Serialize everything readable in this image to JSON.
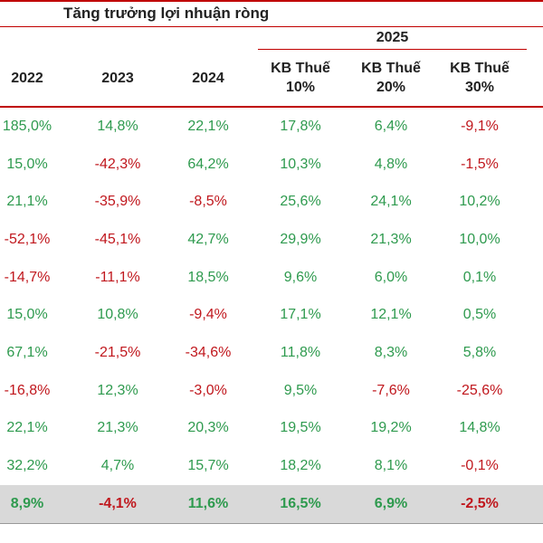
{
  "title": "Tăng trưởng lợi nhuận ròng",
  "group_label": "2025",
  "headers": [
    "2022",
    "2023",
    "2024",
    "KB Thuế\n10%",
    "KB Thuế\n20%",
    "KB Thuế\n30%"
  ],
  "colors": {
    "positive": "#2e9a4e",
    "negative": "#c0171d",
    "rule": "#c00000",
    "total_bg": "#d9d9d9"
  },
  "rows": [
    [
      "185,0%",
      "14,8%",
      "22,1%",
      "17,8%",
      "6,4%",
      "-9,1%"
    ],
    [
      "15,0%",
      "-42,3%",
      "64,2%",
      "10,3%",
      "4,8%",
      "-1,5%"
    ],
    [
      "21,1%",
      "-35,9%",
      "-8,5%",
      "25,6%",
      "24,1%",
      "10,2%"
    ],
    [
      "-52,1%",
      "-45,1%",
      "42,7%",
      "29,9%",
      "21,3%",
      "10,0%"
    ],
    [
      "-14,7%",
      "-11,1%",
      "18,5%",
      "9,6%",
      "6,0%",
      "0,1%"
    ],
    [
      "15,0%",
      "10,8%",
      "-9,4%",
      "17,1%",
      "12,1%",
      "0,5%"
    ],
    [
      "67,1%",
      "-21,5%",
      "-34,6%",
      "11,8%",
      "8,3%",
      "5,8%"
    ],
    [
      "-16,8%",
      "12,3%",
      "-3,0%",
      "9,5%",
      "-7,6%",
      "-25,6%"
    ],
    [
      "22,1%",
      "21,3%",
      "20,3%",
      "19,5%",
      "19,2%",
      "14,8%"
    ],
    [
      "32,2%",
      "4,7%",
      "15,7%",
      "18,2%",
      "8,1%",
      "-0,1%"
    ]
  ],
  "total_row": [
    "8,9%",
    "-4,1%",
    "11,6%",
    "16,5%",
    "6,9%",
    "-2,5%"
  ]
}
